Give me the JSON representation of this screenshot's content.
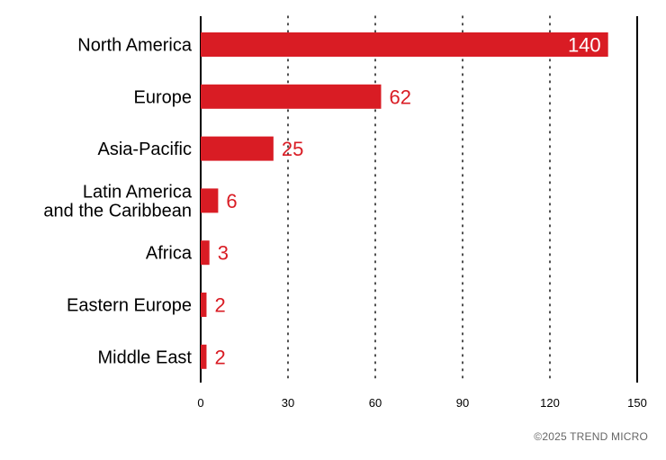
{
  "chart_data": {
    "type": "bar",
    "orientation": "horizontal",
    "categories": [
      "North America",
      "Europe",
      "Asia-Pacific",
      "Latin America\nand the Caribbean",
      "Africa",
      "Eastern Europe",
      "Middle East"
    ],
    "values": [
      140,
      62,
      25,
      6,
      3,
      2,
      2
    ],
    "xlim": [
      0,
      150
    ],
    "xticks": [
      0,
      30,
      60,
      90,
      120,
      150
    ],
    "grid": "vertical dotted",
    "bar_color": "#d91c24",
    "label_color": "#d91c24",
    "title": "",
    "xlabel": "",
    "ylabel": ""
  },
  "footer": {
    "copyright": "©2025 TREND MICRO"
  }
}
